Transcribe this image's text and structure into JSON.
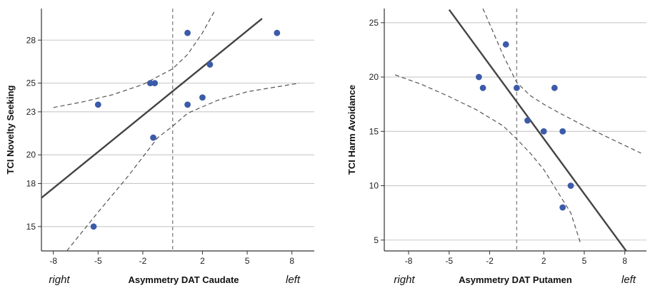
{
  "chart_data": [
    {
      "type": "scatter",
      "xlabel": "Asymmetry DAT Caudate",
      "ylabel": "TCI Novelty Seeking",
      "side_left": "right",
      "side_right": "left",
      "xticks": [
        -8,
        -5,
        -2,
        2,
        5,
        8
      ],
      "yticks": [
        15,
        18,
        20,
        23,
        25,
        28
      ],
      "xlim": [
        -8.8,
        9.5
      ],
      "ylim": [
        13.3,
        30.2
      ],
      "zero_line_x": 0,
      "grid": "horizontal",
      "point_color": "#3b5ba8",
      "line_color": "#444444",
      "points": [
        {
          "x": -5.0,
          "y": 23.5
        },
        {
          "x": -5.3,
          "y": 15.0
        },
        {
          "x": -1.5,
          "y": 25.0
        },
        {
          "x": -1.2,
          "y": 25.0
        },
        {
          "x": -1.3,
          "y": 21.2
        },
        {
          "x": 1.0,
          "y": 23.5
        },
        {
          "x": 1.0,
          "y": 28.5
        },
        {
          "x": 2.0,
          "y": 24.0
        },
        {
          "x": 2.5,
          "y": 26.3
        },
        {
          "x": 7.0,
          "y": 28.5
        }
      ],
      "fit_line": [
        {
          "x": -8.8,
          "y": 17.0
        },
        {
          "x": 6.0,
          "y": 29.5
        }
      ],
      "ci_upper": [
        {
          "x": -8.0,
          "y": 23.3
        },
        {
          "x": -6.0,
          "y": 23.7
        },
        {
          "x": -4.0,
          "y": 24.2
        },
        {
          "x": -2.0,
          "y": 24.9
        },
        {
          "x": 0.0,
          "y": 26.0
        },
        {
          "x": 1.0,
          "y": 27.0
        },
        {
          "x": 2.0,
          "y": 28.5
        },
        {
          "x": 2.8,
          "y": 30.0
        }
      ],
      "ci_lower": [
        {
          "x": -7.1,
          "y": 13.3
        },
        {
          "x": -5.0,
          "y": 16.0
        },
        {
          "x": -3.0,
          "y": 18.5
        },
        {
          "x": -1.0,
          "y": 21.2
        },
        {
          "x": 0.0,
          "y": 22.0
        },
        {
          "x": 1.0,
          "y": 22.9
        },
        {
          "x": 3.0,
          "y": 23.8
        },
        {
          "x": 5.0,
          "y": 24.4
        },
        {
          "x": 8.5,
          "y": 25.0
        }
      ]
    },
    {
      "type": "scatter",
      "xlabel": "Asymmetry DAT Putamen",
      "ylabel": "TCI Harm Avoidance",
      "side_left": "right",
      "side_right": "left",
      "xticks": [
        -8,
        -5,
        -2,
        2,
        5,
        8
      ],
      "yticks": [
        5,
        10,
        15,
        20,
        25
      ],
      "xlim": [
        -9.8,
        9.6
      ],
      "ylim": [
        4.0,
        26.3
      ],
      "zero_line_x": 0,
      "grid": "horizontal",
      "point_color": "#3b5ba8",
      "line_color": "#444444",
      "points": [
        {
          "x": -2.8,
          "y": 20.0
        },
        {
          "x": -2.5,
          "y": 19.0
        },
        {
          "x": -0.8,
          "y": 23.0
        },
        {
          "x": 0.0,
          "y": 19.0
        },
        {
          "x": 0.8,
          "y": 16.0
        },
        {
          "x": 2.0,
          "y": 15.0
        },
        {
          "x": 2.8,
          "y": 19.0
        },
        {
          "x": 3.4,
          "y": 15.0
        },
        {
          "x": 4.0,
          "y": 10.0
        },
        {
          "x": 3.4,
          "y": 8.0
        }
      ],
      "fit_line": [
        {
          "x": -5.0,
          "y": 26.2
        },
        {
          "x": 8.1,
          "y": 4.0
        }
      ],
      "ci_upper": [
        {
          "x": -2.5,
          "y": 26.3
        },
        {
          "x": -1.0,
          "y": 22.0
        },
        {
          "x": 0.0,
          "y": 19.5
        },
        {
          "x": 1.0,
          "y": 18.3
        },
        {
          "x": 2.0,
          "y": 17.5
        },
        {
          "x": 3.0,
          "y": 16.8
        },
        {
          "x": 5.0,
          "y": 15.5
        },
        {
          "x": 7.0,
          "y": 14.3
        },
        {
          "x": 9.2,
          "y": 13.0
        }
      ],
      "ci_lower": [
        {
          "x": -9.0,
          "y": 20.2
        },
        {
          "x": -7.0,
          "y": 19.3
        },
        {
          "x": -5.0,
          "y": 18.2
        },
        {
          "x": -3.0,
          "y": 17.0
        },
        {
          "x": -1.0,
          "y": 15.5
        },
        {
          "x": 0.0,
          "y": 14.3
        },
        {
          "x": 1.0,
          "y": 13.0
        },
        {
          "x": 2.0,
          "y": 11.5
        },
        {
          "x": 3.0,
          "y": 9.5
        },
        {
          "x": 4.0,
          "y": 7.5
        },
        {
          "x": 4.7,
          "y": 4.8
        }
      ]
    }
  ]
}
